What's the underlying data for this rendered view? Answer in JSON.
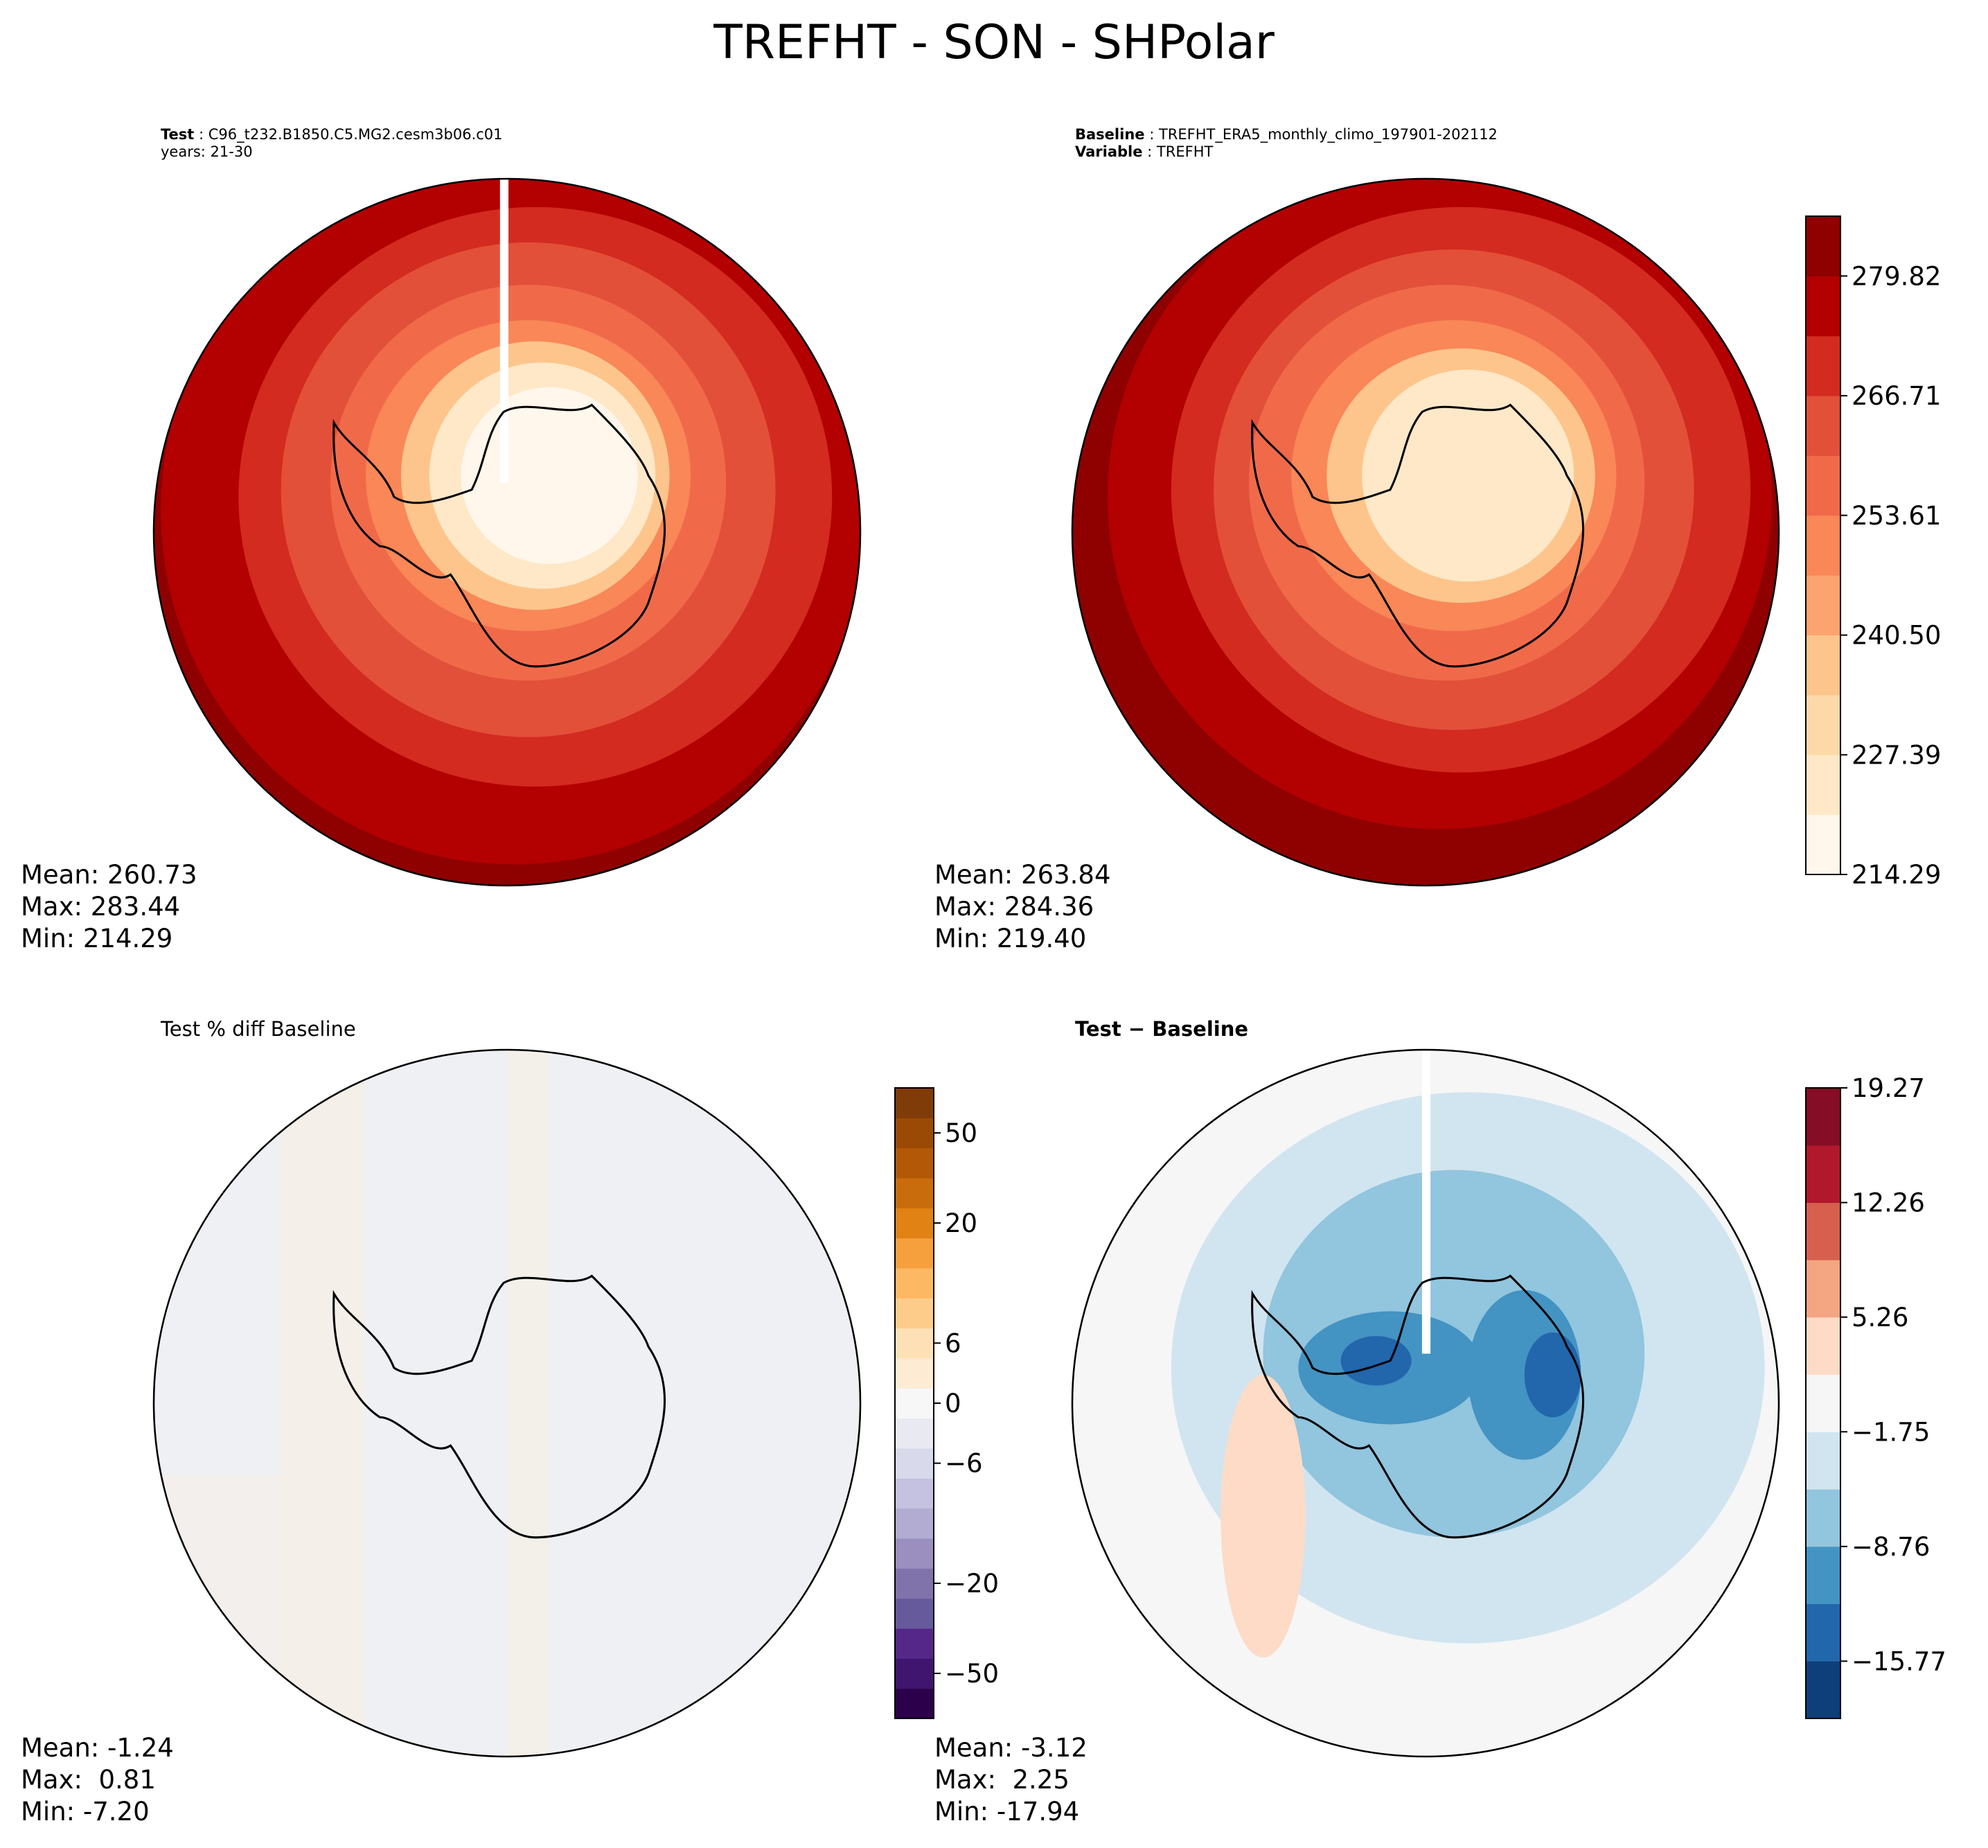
{
  "figure": {
    "title": "TREFHT - SON - SHPolar"
  },
  "panels": {
    "test": {
      "header_bold": "Test",
      "header_value": "C96_t232.B1850.C5.MG2.cesm3b06.c01",
      "header_line2": "years: 21-30",
      "stats": {
        "mean": "Mean: 260.73",
        "max": "Max: 283.44",
        "min": "Min: 214.29"
      }
    },
    "baseline": {
      "header_bold": "Baseline",
      "header_value": "TREFHT_ERA5_monthly_climo_197901-202112",
      "header_bold2": "Variable",
      "header_value2": "TREFHT",
      "stats": {
        "mean": "Mean: 263.84",
        "max": "Max: 284.36",
        "min": "Min: 219.40"
      }
    },
    "pct_diff": {
      "title": "Test % diff Baseline",
      "stats": {
        "mean": "Mean: -1.24",
        "max": "Max:  0.81",
        "min": "Min: -7.20"
      }
    },
    "diff": {
      "title": "Test − Baseline",
      "stats": {
        "mean": "Mean: -3.12",
        "max": "Max:  2.25",
        "min": "Min: -17.94"
      }
    }
  },
  "chart_data": [
    {
      "type": "heatmap",
      "panel": "test",
      "projection": "south-polar-stereographic",
      "title": "",
      "colormap": "OrRd",
      "levels_range": [
        214.29,
        283.44
      ],
      "stats": {
        "mean": 260.73,
        "max": 283.44,
        "min": 214.29
      }
    },
    {
      "type": "heatmap",
      "panel": "baseline",
      "projection": "south-polar-stereographic",
      "title": "",
      "colormap": "OrRd",
      "colorbar": {
        "ticks": [
          214.29,
          227.39,
          240.5,
          253.61,
          266.71,
          279.82
        ],
        "tick_labels": [
          "214.29",
          "227.39",
          "240.50",
          "253.61",
          "266.71",
          "279.82"
        ],
        "range": [
          214.29,
          286.37
        ],
        "colors": [
          "#fff7ec",
          "#fee8c8",
          "#fdd9a9",
          "#fdc58c",
          "#fca46f",
          "#f98757",
          "#f06a4a",
          "#e2503a",
          "#d32b1f",
          "#b30000",
          "#8f0000"
        ]
      },
      "stats": {
        "mean": 263.84,
        "max": 284.36,
        "min": 219.4
      }
    },
    {
      "type": "heatmap",
      "panel": "pct_diff",
      "projection": "south-polar-stereographic",
      "title": "Test % diff Baseline",
      "colormap": "PuOr_r",
      "colorbar": {
        "ticks": [
          -50,
          -20,
          -6,
          0,
          6,
          20,
          50
        ],
        "tick_labels": [
          "−50",
          "−20",
          "−6",
          "0",
          "6",
          "20",
          "50"
        ],
        "colors": [
          "#2d004b",
          "#3f1570",
          "#542788",
          "#675a9c",
          "#8073ac",
          "#9a8fbf",
          "#b2abd2",
          "#c5c1e0",
          "#d8daeb",
          "#e9e9f2",
          "#f7f7f7",
          "#fdebd4",
          "#fee0b6",
          "#fdcc8a",
          "#fdb863",
          "#f5a03d",
          "#e08214",
          "#c96c0b",
          "#b35806",
          "#9b4a06",
          "#7f3b08"
        ]
      },
      "stats": {
        "mean": -1.24,
        "max": 0.81,
        "min": -7.2
      }
    },
    {
      "type": "heatmap",
      "panel": "diff",
      "projection": "south-polar-stereographic",
      "title": "Test − Baseline",
      "colormap": "RdBu_r",
      "colorbar": {
        "ticks": [
          -15.77,
          -8.76,
          -1.75,
          5.26,
          12.26,
          19.27
        ],
        "tick_labels": [
          "−15.77",
          "−8.76",
          "−1.75",
          "5.26",
          "12.26",
          "19.27"
        ],
        "range": [
          -19.27,
          19.27
        ],
        "colors": [
          "#0e3f7a",
          "#2266ac",
          "#4393c3",
          "#92c5de",
          "#d1e5f0",
          "#f6f6f6",
          "#fddbc7",
          "#f4a582",
          "#d6604d",
          "#b2182b",
          "#850d25"
        ]
      },
      "stats": {
        "mean": -3.12,
        "max": 2.25,
        "min": -17.94
      }
    }
  ]
}
